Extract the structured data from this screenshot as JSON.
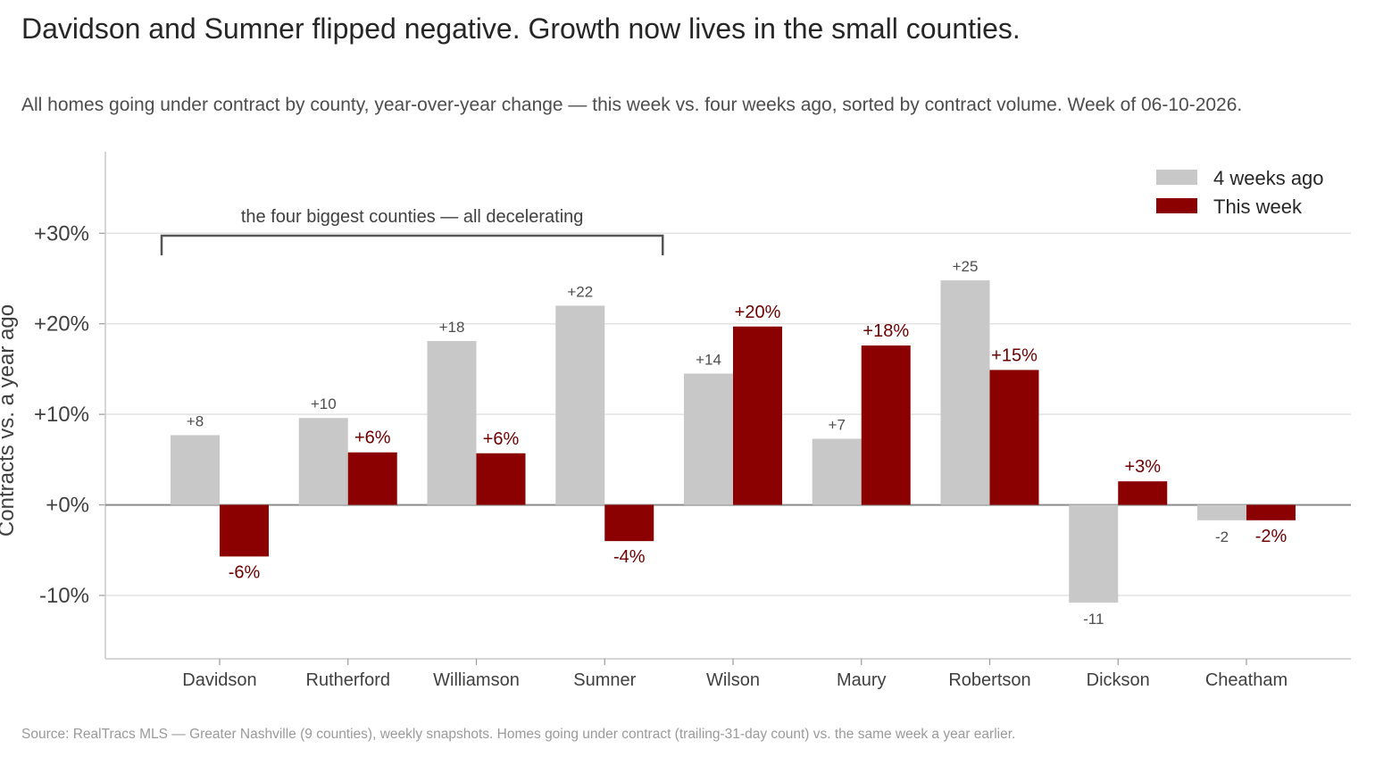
{
  "title": "Davidson and Sumner flipped negative. Growth now lives in the small counties.",
  "subtitle": "All homes going under contract by county, year-over-year change — this week vs. four weeks ago, sorted by contract volume. Week of 06-10-2026.",
  "source": "Source: RealTracs MLS — Greater Nashville (9 counties), weekly snapshots. Homes going under contract (trailing-31-day count) vs. the same week a year earlier.",
  "colors": {
    "prior": "#c8c8c8",
    "current": "#8b0000",
    "current_label": "#6b0000",
    "prior_label": "#4d4d4d"
  },
  "chart_data": {
    "type": "bar",
    "categories": [
      "Davidson",
      "Rutherford",
      "Williamson",
      "Sumner",
      "Wilson",
      "Maury",
      "Robertson",
      "Dickson",
      "Cheatham"
    ],
    "series": [
      {
        "name": "4 weeks ago",
        "values": [
          7.7,
          9.6,
          18.1,
          22.0,
          14.5,
          7.3,
          24.8,
          -10.8,
          -1.7
        ],
        "labels": [
          "+8",
          "+10",
          "+18",
          "+22",
          "+14",
          "+7",
          "+25",
          "-11",
          "-2"
        ]
      },
      {
        "name": "This week",
        "values": [
          -5.7,
          5.8,
          5.7,
          -4.0,
          19.7,
          17.6,
          14.9,
          2.6,
          -1.7
        ],
        "labels": [
          "-6%",
          "+6%",
          "+6%",
          "-4%",
          "+20%",
          "+18%",
          "+15%",
          "+3%",
          "-2%"
        ]
      }
    ],
    "ylabel": "Contracts vs. a year ago",
    "ylim": [
      -17,
      39
    ],
    "yticks": [
      -10,
      0,
      10,
      20,
      30
    ],
    "ytick_labels": [
      "-10%",
      "+0%",
      "+10%",
      "+20%",
      "+30%"
    ],
    "grid": true,
    "legend": "top-right",
    "annotation": {
      "text": "the four biggest counties — all decelerating",
      "from_category": 0,
      "to_category": 3
    }
  }
}
